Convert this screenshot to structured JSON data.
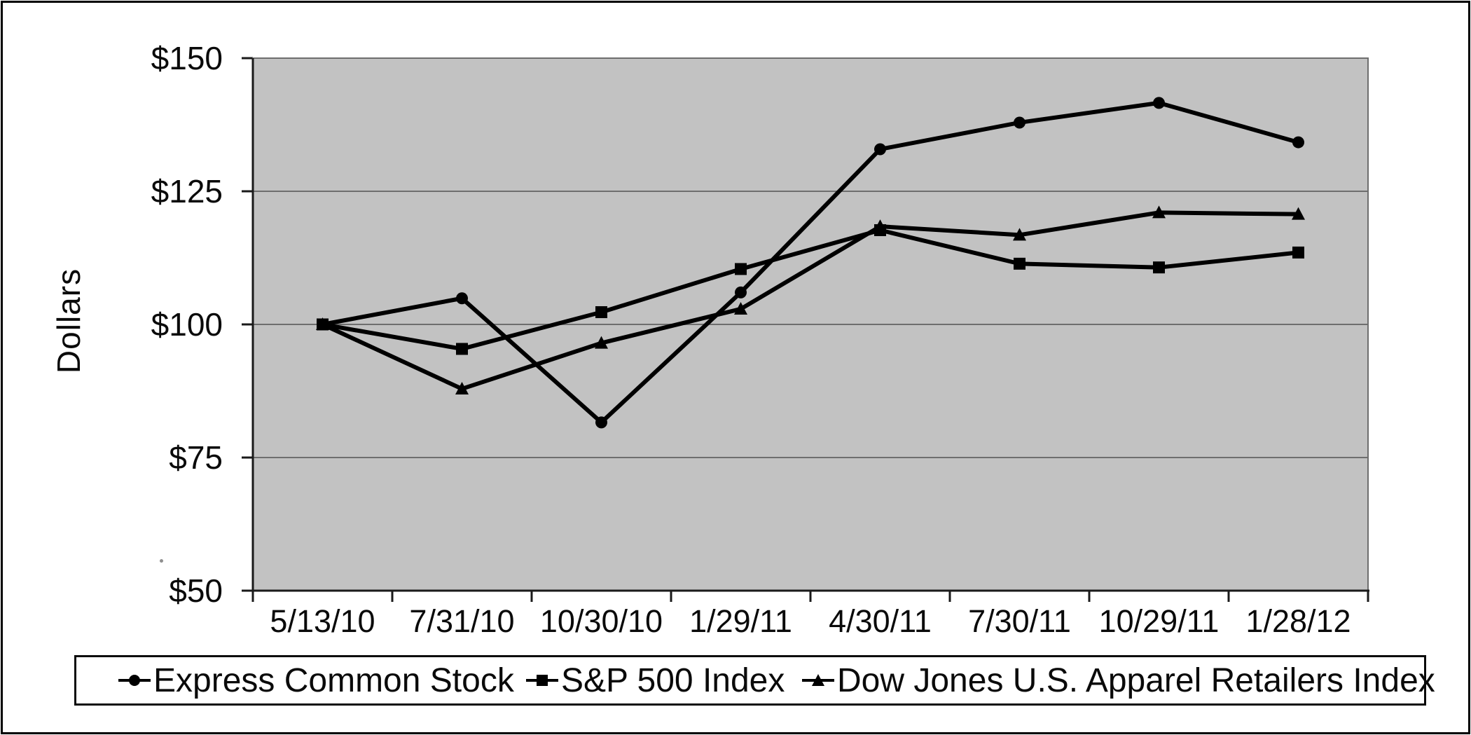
{
  "chart_data": {
    "type": "line",
    "title": "",
    "ylabel": "Dollars",
    "xlabel": "",
    "categories": [
      "5/13/10",
      "7/31/10",
      "10/30/10",
      "1/29/11",
      "4/30/11",
      "7/30/11",
      "10/29/11",
      "1/28/12"
    ],
    "y_tick_values": [
      150,
      125,
      100,
      75,
      50
    ],
    "y_tick_labels": [
      "$150",
      "$125",
      "$100",
      "$75",
      "$50"
    ],
    "ylim": [
      50,
      150
    ],
    "grid": true,
    "legend_position": "bottom",
    "plot_bg_color": "#c2c2c2",
    "gridline_color": "#6e6e6e",
    "axis_color": "#1a1a1a",
    "series_color": "#000000",
    "series": [
      {
        "name": "Express Common Stock",
        "marker": "circle",
        "values": [
          100.0,
          104.9,
          81.6,
          106.0,
          132.9,
          137.9,
          141.6,
          134.2
        ]
      },
      {
        "name": "S&P 500 Index",
        "marker": "square",
        "values": [
          100.0,
          95.4,
          102.3,
          110.4,
          117.7,
          111.4,
          110.7,
          113.5
        ]
      },
      {
        "name": "Dow Jones U.S. Apparel Retailers Index",
        "marker": "triangle",
        "values": [
          100.0,
          87.9,
          96.5,
          102.9,
          118.4,
          116.8,
          121.0,
          120.7
        ]
      }
    ]
  }
}
